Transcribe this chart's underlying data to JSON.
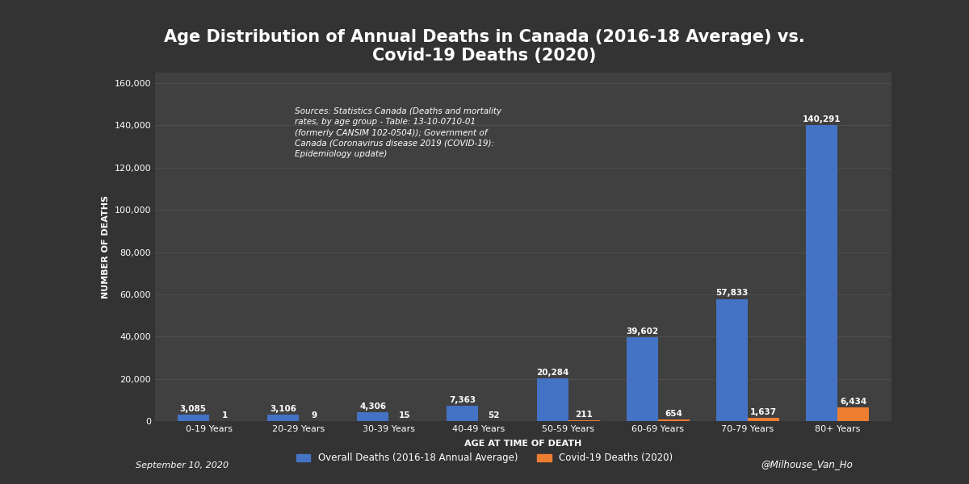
{
  "title": "Age Distribution of Annual Deaths in Canada (2016-18 Average) vs.\nCovid-19 Deaths (2020)",
  "categories": [
    "0-19 Years",
    "20-29 Years",
    "30-39 Years",
    "40-49 Years",
    "50-59 Years",
    "60-69 Years",
    "70-79 Years",
    "80+ Years"
  ],
  "overall_deaths": [
    3085,
    3106,
    4306,
    7363,
    20284,
    39602,
    57833,
    140291
  ],
  "covid_deaths": [
    1,
    9,
    15,
    52,
    211,
    654,
    1637,
    6434
  ],
  "bar_color_overall": "#4472C4",
  "bar_color_covid": "#ED7D31",
  "background_color": "#333333",
  "plot_bg_color": "#404040",
  "text_color": "#FFFFFF",
  "grid_color": "#555555",
  "xlabel": "AGE AT TIME OF DEATH",
  "ylabel": "NUMBER OF DEATHS",
  "ylim": [
    0,
    165000
  ],
  "yticks": [
    0,
    20000,
    40000,
    60000,
    80000,
    100000,
    120000,
    140000,
    160000
  ],
  "legend_overall": "Overall Deaths (2016-18 Annual Average)",
  "legend_covid": "Covid-19 Deaths (2020)",
  "source_text": "Sources: Statistics Canada (Deaths and mortality\nrates, by age group - Table: 13-10-0710-01\n(formerly CANSIM 102-0504)); Government of\nCanada (Coronavirus disease 2019 (COVID-19):\nEpidemiology update)",
  "footnote": "September 10, 2020",
  "watermark": "@Milhouse_Van_Ho",
  "title_fontsize": 15,
  "axis_label_fontsize": 8,
  "tick_fontsize": 8,
  "bar_label_fontsize": 7.5,
  "source_fontsize": 7.5,
  "bar_width": 0.35
}
